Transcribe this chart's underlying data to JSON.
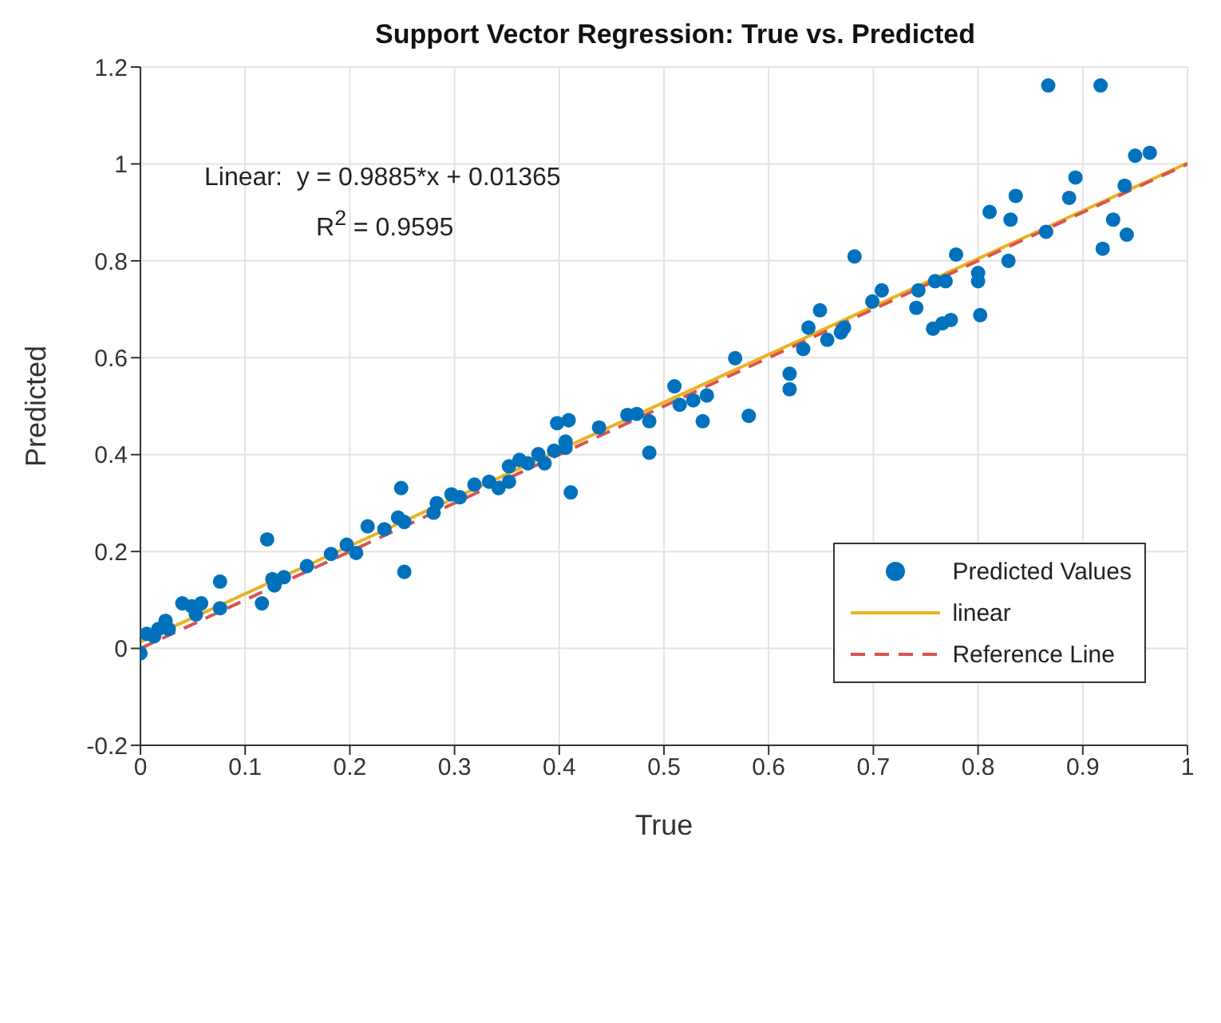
{
  "chart_data": {
    "type": "scatter",
    "title": "Support Vector Regression: True vs. Predicted",
    "xlabel": "True",
    "ylabel": "Predicted",
    "xlim": [
      0,
      1
    ],
    "xticks": [
      0,
      0.1,
      0.2,
      0.3,
      0.4,
      0.5,
      0.6,
      0.7,
      0.8,
      0.9,
      1
    ],
    "ylim": [
      -0.2,
      1.2
    ],
    "yticks": [
      -0.2,
      0,
      0.2,
      0.4,
      0.6,
      0.8,
      1,
      1.2
    ],
    "grid": true,
    "legend": "bottom right",
    "annotations": [
      "Linear:  y = 0.9885*x + 0.01365",
      "R$^{2}$ = 0.9595"
    ],
    "series": [
      {
        "name": "Predicted Values",
        "color": "#0072bd",
        "marker": "circle",
        "x": [
          0,
          0.006,
          0.013,
          0.017,
          0.024,
          0.027,
          0.04,
          0.049,
          0.053,
          0.058,
          0.076,
          0.076,
          0.116,
          0.121,
          0.126,
          0.128,
          0.137,
          0.159,
          0.182,
          0.197,
          0.206,
          0.217,
          0.233,
          0.246,
          0.249,
          0.252,
          0.252,
          0.28,
          0.283,
          0.297,
          0.305,
          0.319,
          0.333,
          0.342,
          0.352,
          0.352,
          0.362,
          0.37,
          0.38,
          0.386,
          0.395,
          0.398,
          0.406,
          0.409,
          0.411,
          0.406,
          0.438,
          0.465,
          0.474,
          0.486,
          0.486,
          0.51,
          0.515,
          0.528,
          0.537,
          0.541,
          0.568,
          0.581,
          0.62,
          0.62,
          0.633,
          0.638,
          0.649,
          0.656,
          0.669,
          0.672,
          0.682,
          0.699,
          0.708,
          0.741,
          0.743,
          0.757,
          0.759,
          0.766,
          0.769,
          0.774,
          0.779,
          0.8,
          0.8,
          0.802,
          0.811,
          0.829,
          0.831,
          0.836,
          0.865,
          0.867,
          0.887,
          0.893,
          0.917,
          0.919,
          0.929,
          0.94,
          0.942,
          0.95,
          0.964
        ],
        "values": [
          -0.01,
          0.03,
          0.025,
          0.04,
          0.057,
          0.04,
          0.093,
          0.087,
          0.07,
          0.093,
          0.083,
          0.138,
          0.093,
          0.225,
          0.143,
          0.13,
          0.147,
          0.17,
          0.195,
          0.214,
          0.197,
          0.252,
          0.246,
          0.27,
          0.331,
          0.158,
          0.261,
          0.28,
          0.3,
          0.318,
          0.312,
          0.338,
          0.344,
          0.331,
          0.376,
          0.344,
          0.389,
          0.382,
          0.401,
          0.382,
          0.408,
          0.465,
          0.427,
          0.471,
          0.322,
          0.414,
          0.456,
          0.482,
          0.484,
          0.469,
          0.404,
          0.541,
          0.503,
          0.512,
          0.469,
          0.522,
          0.599,
          0.48,
          0.567,
          0.535,
          0.618,
          0.662,
          0.698,
          0.637,
          0.652,
          0.662,
          0.809,
          0.716,
          0.739,
          0.703,
          0.739,
          0.66,
          0.758,
          0.671,
          0.758,
          0.678,
          0.813,
          0.775,
          0.758,
          0.688,
          0.901,
          0.8,
          0.885,
          0.934,
          0.86,
          1.162,
          0.93,
          0.972,
          1.162,
          0.825,
          0.885,
          0.955,
          0.854,
          1.017,
          1.023
        ]
      },
      {
        "name": "linear",
        "type": "line",
        "color": "#edb120",
        "line_style": "solid",
        "marker": "none",
        "x": [
          0,
          1
        ],
        "values": [
          0.014,
          1.002
        ]
      },
      {
        "name": "Reference Line",
        "type": "line",
        "color": "#d9534f",
        "line_style": "dashed",
        "marker": "none",
        "x": [
          0,
          1
        ],
        "values": [
          0,
          1
        ]
      }
    ]
  }
}
